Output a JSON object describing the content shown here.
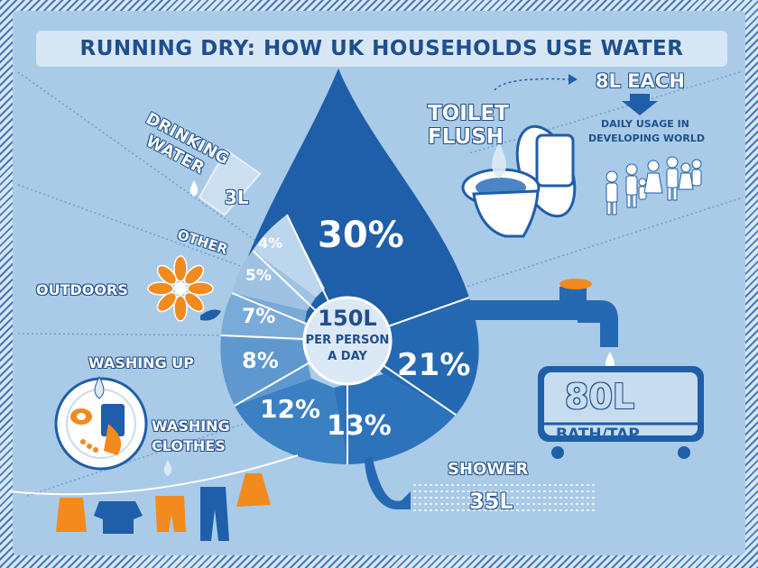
{
  "title": "RUNNING DRY: HOW UK HOUSEHOLDS USE WATER",
  "center": {
    "amount": "150L",
    "line1": "PER PERSON",
    "line2": "A DAY"
  },
  "segments": {
    "toilet": "30%",
    "bath_tap": "21%",
    "shower": "13%",
    "washing_clothes": "12%",
    "washing_up": "8%",
    "outdoors": "7%",
    "other": "5%",
    "drinking": "4%"
  },
  "labels": {
    "toilet_line1": "TOILET",
    "toilet_line2": "FLUSH",
    "drinking_line1": "DRINKING",
    "drinking_line2": "WATER",
    "drinking_amount": "3L",
    "other": "OTHER",
    "outdoors": "OUTDOORS",
    "washing_up": "WASHING UP",
    "washing_clothes_line1": "WASHING",
    "washing_clothes_line2": "CLOTHES",
    "shower": "SHOWER",
    "shower_amount": "35L",
    "bath_amount": "80L",
    "bath_label": "BATH/TAP",
    "each_amount": "8L EACH",
    "developing_line1": "DAILY USAGE IN",
    "developing_line2": "DEVELOPING WORLD"
  },
  "colors": {
    "dark_blue": "#1f5ea8",
    "mid_blue": "#2f71b8",
    "light_blue": "#c7dcef",
    "orange": "#f28a1e",
    "background": "#a9cbe8"
  }
}
